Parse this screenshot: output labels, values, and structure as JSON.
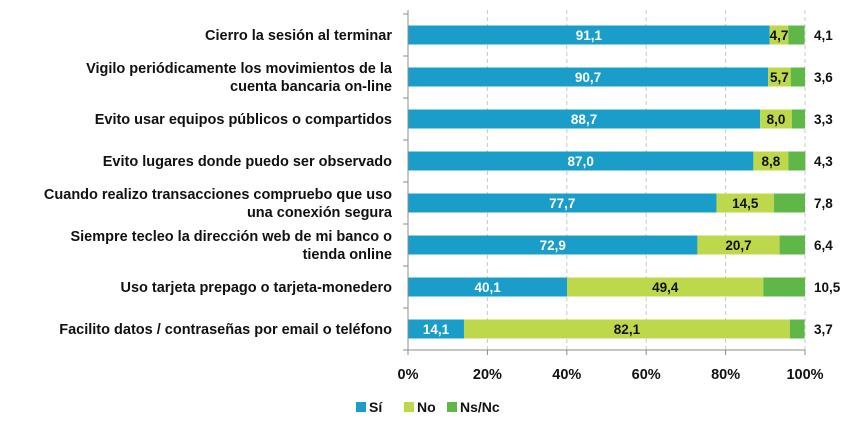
{
  "chart_data": {
    "type": "bar",
    "orientation": "horizontal",
    "stacked": true,
    "categories": [
      [
        "Cierro la sesión al terminar"
      ],
      [
        "Vigilo periódicamente los movimientos de la",
        "cuenta bancaria on-line"
      ],
      [
        "Evito usar equipos públicos o compartidos"
      ],
      [
        "Evito lugares donde puedo ser observado"
      ],
      [
        "Cuando realizo transacciones  compruebo que uso",
        "una conexión  segura"
      ],
      [
        "Siempre tecleo  la dirección web de mi banco o",
        "tienda online"
      ],
      [
        "Uso tarjeta  prepago o tarjeta-monedero"
      ],
      [
        "Facilito datos  / contraseñas  por email o teléfono"
      ]
    ],
    "series": [
      {
        "name": "Sí",
        "color": "#1a9dc9",
        "label_color": "#ffffff",
        "values": [
          91.1,
          90.7,
          88.7,
          87.0,
          77.7,
          72.9,
          40.1,
          14.1
        ],
        "labels": [
          "91,1",
          "90,7",
          "88,7",
          "87,0",
          "77,7",
          "72,9",
          "40,1",
          "14,1"
        ]
      },
      {
        "name": "No",
        "color": "#bdd84a",
        "label_color": "#111111",
        "values": [
          4.7,
          5.7,
          8.0,
          8.8,
          14.5,
          20.7,
          49.4,
          82.1
        ],
        "labels": [
          "4,7",
          "5,7",
          "8,0",
          "8,8",
          "14,5",
          "20,7",
          "49,4",
          "82,1"
        ]
      },
      {
        "name": "Ns/Nc",
        "color": "#5fb748",
        "label_color": "#111111",
        "values": [
          4.1,
          3.6,
          3.3,
          4.3,
          7.8,
          6.4,
          10.5,
          3.7
        ],
        "labels": [
          "4,1",
          "3,6",
          "3,3",
          "4,3",
          "7,8",
          "6,4",
          "10,5",
          "3,7"
        ]
      }
    ],
    "xlim": [
      0,
      100
    ],
    "xticks": [
      "0%",
      "20%",
      "40%",
      "60%",
      "80%",
      "100%"
    ],
    "grid": true,
    "legend": "bottom"
  }
}
